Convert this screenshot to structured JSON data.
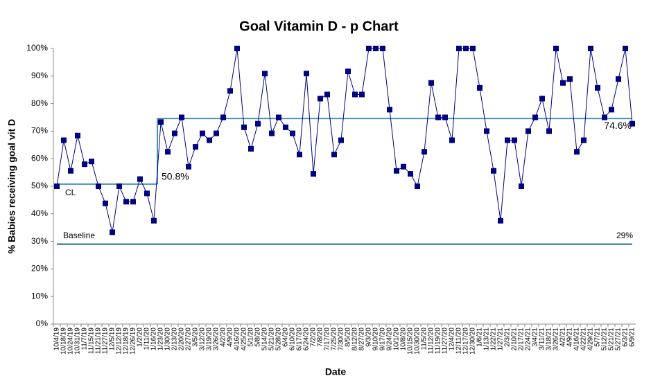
{
  "chart_data": {
    "type": "line",
    "title": "Goal Vitamin D - p Chart",
    "x_label": "Date",
    "y_label": "% Babies receiving goal vit D",
    "categories": [
      "10/4/19",
      "10/18/19",
      "10/24/19",
      "10/31/19",
      "11/7/19",
      "11/15/19",
      "11/21/19",
      "11/27/19",
      "12/5/19",
      "12/12/19",
      "12/18/19",
      "12/26/19",
      "1/2/20",
      "1/11/20",
      "1/16/20",
      "1/23/20",
      "1/30/20",
      "2/13/20",
      "2/20/20",
      "2/27/20",
      "3/5/20",
      "3/12/20",
      "3/19/20",
      "3/26/20",
      "4/2/20",
      "4/9/20",
      "4/16/20",
      "4/25/20",
      "5/1/20",
      "5/8/20",
      "5/14/20",
      "5/21/20",
      "5/28/20",
      "6/4/20",
      "6/10/20",
      "6/17/20",
      "6/24/20",
      "7/2/20",
      "7/8/20",
      "7/17/20",
      "7/25/20",
      "7/30/20",
      "8/5/20",
      "8/12/20",
      "8/27/20",
      "9/3/20",
      "9/10/20",
      "9/17/20",
      "9/24/20",
      "10/1/20",
      "10/8/20",
      "10/15/20",
      "10/30/20",
      "11/5/20",
      "11/12/20",
      "11/19/20",
      "11/27/20",
      "12/4/20",
      "12/11/20",
      "12/17/20",
      "12/30/20",
      "1/6/21",
      "1/13/21",
      "1/22/21",
      "1/27/21",
      "2/3/21",
      "2/10/21",
      "2/17/21",
      "2/24/21",
      "3/4/21",
      "3/11/21",
      "3/18/21",
      "3/26/21",
      "4/2/21",
      "4/9/21",
      "4/16/21",
      "4/22/21",
      "4/29/21",
      "5/7/21",
      "5/12/21",
      "5/21/21",
      "5/27/21",
      "6/3/21",
      "6/9/21"
    ],
    "series": [
      {
        "color": "#000080",
        "values": [
          50,
          66.7,
          55.6,
          68.4,
          58,
          59,
          50,
          43.8,
          33.3,
          50,
          44.4,
          44.4,
          52.6,
          47.4,
          37.5,
          73.3,
          62.5,
          69.2,
          75,
          57.1,
          64.3,
          69.2,
          66.7,
          69.2,
          75,
          84.6,
          100,
          71.4,
          63.6,
          72.7,
          90.9,
          69.2,
          75,
          71.4,
          69.2,
          61.5,
          90.9,
          54.5,
          81.8,
          83.3,
          61.5,
          66.7,
          91.7,
          83.3,
          83.3,
          100,
          100,
          100,
          77.8,
          55.6,
          57.1,
          54.5,
          50,
          62.5,
          87.5,
          75,
          75,
          66.7,
          100,
          100,
          100,
          85.7,
          70,
          55.6,
          37.5,
          66.7,
          66.7,
          50,
          70,
          75,
          81.8,
          70,
          100,
          87.5,
          88.9,
          62.5,
          66.7,
          100,
          85.7,
          75,
          77.8,
          88.9,
          100,
          72.7
        ]
      }
    ],
    "cl_name": "CL",
    "cl_color": "#4a90c2",
    "cl_segments": [
      {
        "value": 50.8,
        "label": "50.8%",
        "start": 0,
        "end": 14
      },
      {
        "value": 74.6,
        "label": "74.6%",
        "start": 15,
        "end": 83
      }
    ],
    "baseline": {
      "name": "Baseline",
      "value": 29,
      "label": "29%",
      "color": "#1a6b78"
    },
    "ylim": [
      0,
      100
    ],
    "yticks": [
      {
        "value": 0,
        "label": "0%"
      },
      {
        "value": 10,
        "label": "10%"
      },
      {
        "value": 20,
        "label": "20%"
      },
      {
        "value": 30,
        "label": "30%"
      },
      {
        "value": 40,
        "label": "40%"
      },
      {
        "value": 50,
        "label": "50%"
      },
      {
        "value": 60,
        "label": "60%"
      },
      {
        "value": 70,
        "label": "70%"
      },
      {
        "value": 80,
        "label": "80%"
      },
      {
        "value": 90,
        "label": "90%"
      },
      {
        "value": 100,
        "label": "100%"
      }
    ]
  }
}
